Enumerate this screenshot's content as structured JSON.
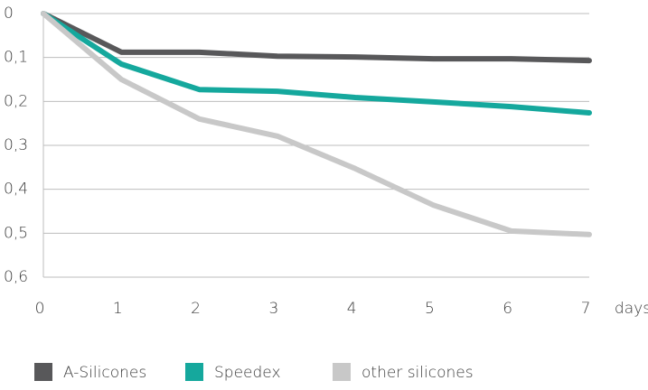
{
  "chart_data": {
    "type": "line",
    "x": [
      0,
      1,
      2,
      3,
      4,
      5,
      6,
      7
    ],
    "x_label": "days",
    "xlim": [
      0,
      7
    ],
    "xticks": [
      0,
      1,
      2,
      3,
      4,
      5,
      6,
      7
    ],
    "ylim": [
      0,
      0.6
    ],
    "y_inverted": true,
    "yticks": [
      0,
      {
        "value": 0.1,
        "label": "0,1"
      },
      {
        "value": 0.2,
        "label": "0,2"
      },
      {
        "value": 0.3,
        "label": "0,3"
      },
      {
        "value": 0.4,
        "label": "0,4"
      },
      {
        "value": 0.5,
        "label": "0,5"
      },
      {
        "value": 0.6,
        "label": "0,6"
      }
    ],
    "grid": true,
    "legend": "bottom",
    "series": [
      {
        "name": "A-Silicones",
        "color": "#58585a",
        "values": [
          0,
          0.088,
          0.088,
          0.097,
          0.099,
          0.103,
          0.103,
          0.107
        ]
      },
      {
        "name": "Speedex",
        "color": "#15a89d",
        "values": [
          0,
          0.115,
          0.173,
          0.177,
          0.191,
          0.201,
          0.212,
          0.226
        ]
      },
      {
        "name": "other silicones",
        "color": "#c8c8c8",
        "values": [
          0,
          0.15,
          0.24,
          0.279,
          0.353,
          0.436,
          0.495,
          0.503
        ]
      }
    ]
  }
}
